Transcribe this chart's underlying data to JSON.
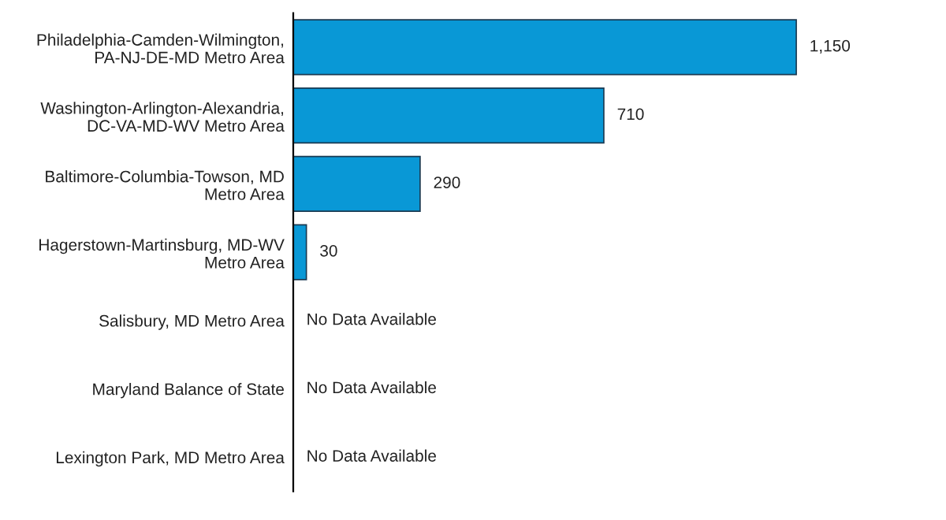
{
  "chart_data": {
    "type": "bar",
    "orientation": "horizontal",
    "categories": [
      "Philadelphia-Camden-Wilmington,\nPA-NJ-DE-MD Metro Area",
      "Washington-Arlington-Alexandria,\nDC-VA-MD-WV Metro Area",
      "Baltimore-Columbia-Towson, MD\nMetro Area",
      "Hagerstown-Martinsburg, MD-WV\nMetro Area",
      "Salisbury, MD Metro Area",
      "Maryland Balance of State",
      "Lexington Park, MD Metro Area"
    ],
    "values": [
      1150,
      710,
      290,
      30,
      null,
      null,
      null
    ],
    "value_labels": [
      "1,150",
      "710",
      "290",
      "30",
      "No Data Available",
      "No Data Available",
      "No Data Available"
    ],
    "color": "#0998d6",
    "tick_labels": "y",
    "grid": false,
    "legend": false
  }
}
